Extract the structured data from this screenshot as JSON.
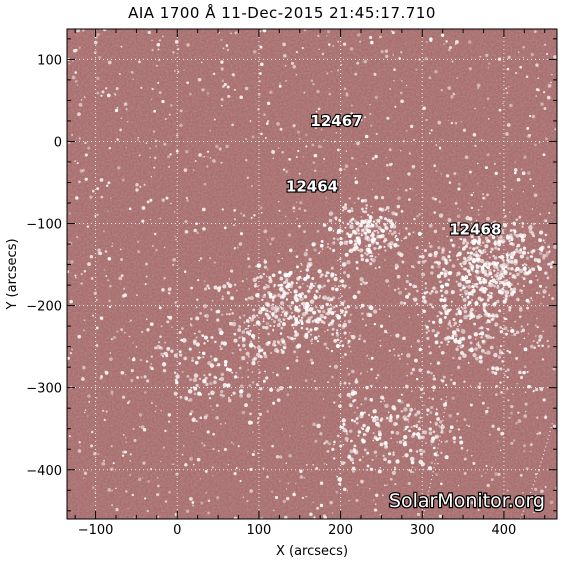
{
  "title": "AIA 1700 Å 11-Dec-2015 21:45:17.710",
  "watermark": "SolarMonitor.org",
  "colors": {
    "disk_base": "#a86e6e",
    "disk_dark": "#8f5757",
    "bright": "#ffffff",
    "grid": "#ffffff"
  },
  "axes": {
    "xlabel": "X (arcsecs)",
    "ylabel": "Y (arcsecs)",
    "xlim": [
      -135,
      465
    ],
    "ylim": [
      -460,
      137
    ],
    "xticks": [
      -100,
      0,
      100,
      200,
      300,
      400
    ],
    "yticks": [
      100,
      0,
      -100,
      -200,
      -300,
      -400
    ],
    "grid": "dotted"
  },
  "active_regions": [
    {
      "label": "12467",
      "x": 195,
      "y": 25
    },
    {
      "label": "12464",
      "x": 165,
      "y": -55
    },
    {
      "label": "12468",
      "x": 365,
      "y": -107
    }
  ]
}
